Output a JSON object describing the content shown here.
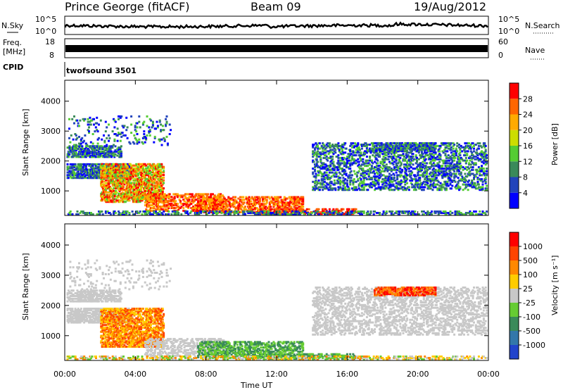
{
  "header": {
    "station": "Prince George (fitACF)",
    "beam": "Beam 09",
    "date": "19/Aug/2012"
  },
  "strips": {
    "nsky_label": "N.Sky",
    "nsky_ticks": [
      "10^5",
      "10^0"
    ],
    "nsearch_label": "N.Search",
    "nsearch_ticks": [
      "10^5",
      "10^0"
    ],
    "freq_label_1": "Freq.",
    "freq_label_2": "[MHz]",
    "freq_ticks": [
      "18",
      "8"
    ],
    "nave_label": "Nave",
    "nave_ticks": [
      "60",
      "0"
    ],
    "cpid_label": "CPID",
    "cpid_value": "twofsound 3501"
  },
  "chart_data": [
    {
      "type": "heatmap",
      "name": "power",
      "ylabel": "Slant Range [km]",
      "y_ticks": [
        "1000",
        "2000",
        "3000",
        "4000"
      ],
      "ylim": [
        180,
        4700
      ],
      "x_ticks": [
        "00:00",
        "04:00",
        "08:00",
        "12:00",
        "16:00",
        "20:00",
        "00:00"
      ],
      "xlim": [
        0,
        24
      ],
      "colorbar_label": "Power [dB]",
      "colorbar_ticks": [
        "4",
        "8",
        "12",
        "16",
        "20",
        "24",
        "28"
      ],
      "colors": [
        "#0000ff",
        "#2244bb",
        "#3a8a5a",
        "#55cc33",
        "#ccdd00",
        "#ffaa00",
        "#ff6600",
        "#ff0000"
      ]
    },
    {
      "type": "heatmap",
      "name": "velocity",
      "ylabel": "Slant Range [km]",
      "y_ticks": [
        "1000",
        "2000",
        "3000",
        "4000"
      ],
      "ylim": [
        180,
        4700
      ],
      "x_ticks": [
        "00:00",
        "04:00",
        "08:00",
        "12:00",
        "16:00",
        "20:00",
        "00:00"
      ],
      "xlim": [
        0,
        24
      ],
      "xlabel": "Time UT",
      "colorbar_label": "Velocity [m s⁻¹]",
      "colorbar_ticks": [
        "1000",
        "500",
        "100",
        "25",
        "-25",
        "-100",
        "-500",
        "-1000"
      ],
      "colors": [
        "#2244cc",
        "#3377aa",
        "#3a8a5a",
        "#66cc33",
        "#c8c8c8",
        "#ffcc00",
        "#ff8800",
        "#ff4400",
        "#ff0000"
      ]
    }
  ]
}
